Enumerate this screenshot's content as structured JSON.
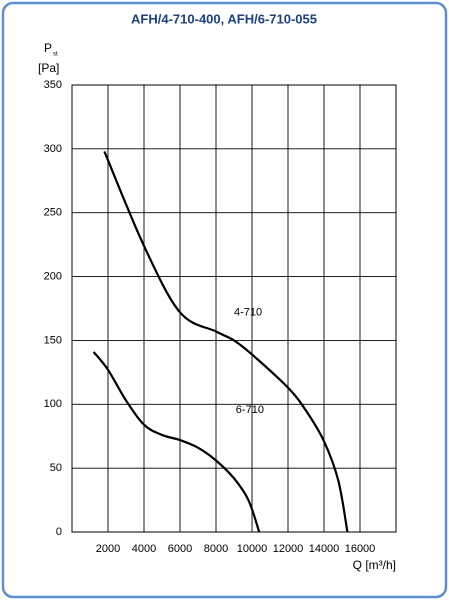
{
  "chart_data": {
    "type": "line",
    "title": "AFH/4-710-400, AFH/6-710-055",
    "y_label": "P",
    "y_label_sub": "st",
    "y_unit": "[Pa]",
    "x_label": "Q [m³/h]",
    "xlim": [
      0,
      18000
    ],
    "xticks": [
      2000,
      4000,
      6000,
      8000,
      10000,
      12000,
      14000,
      16000
    ],
    "ylim": [
      0,
      350
    ],
    "yticks": [
      0,
      50,
      100,
      150,
      200,
      250,
      300,
      350
    ],
    "grid": true,
    "series": [
      {
        "name": "4-710",
        "color": "#000000",
        "x": [
          1800,
          4000,
          6000,
          8000,
          9000,
          10000,
          12000,
          13000,
          14000,
          14800,
          15300
        ],
        "values": [
          298,
          224,
          172,
          157,
          150,
          139,
          113,
          95,
          71,
          40,
          0
        ]
      },
      {
        "name": "6-710",
        "color": "#000000",
        "x": [
          1200,
          2000,
          3000,
          4000,
          5000,
          6000,
          7000,
          8000,
          9000,
          9800,
          10400
        ],
        "values": [
          141,
          127,
          103,
          84,
          76,
          72,
          66,
          56,
          42,
          25,
          0
        ]
      }
    ]
  }
}
